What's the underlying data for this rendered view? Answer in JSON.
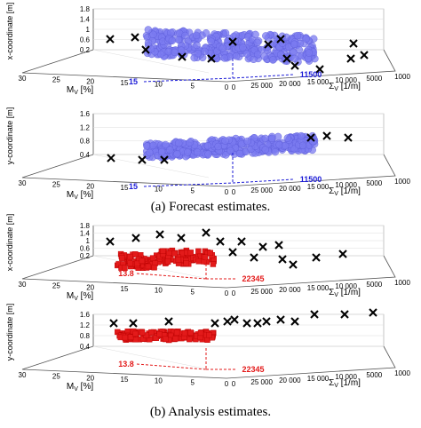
{
  "caption_a": "(a)  Forecast estimates.",
  "caption_b": "(b)  Analysis estimates.",
  "chart_data": [
    {
      "type": "scatter",
      "ylabel": "x-coordinate [m]",
      "xlabel_left": "M_V [%]",
      "xlabel_right": "Σ_V [1/m]",
      "z_ticks": [
        "0.2",
        "0.6",
        "1",
        "1.4",
        "1.8"
      ],
      "m_ticks": [
        "30",
        "25",
        "20",
        "15",
        "10",
        "5",
        "0"
      ],
      "s_ticks": [
        "0",
        "25 000",
        "20 000",
        "15 000",
        "10 000",
        "5000",
        "1000"
      ],
      "ensemble_color": "#7b7bf0",
      "estimate_label_m": "15",
      "estimate_label_s": "11500",
      "estimate_color": "#1a1ad6",
      "cross_label": "×"
    },
    {
      "type": "scatter",
      "ylabel": "y-coordinate [m]",
      "xlabel_left": "M_V [%]",
      "xlabel_right": "Σ_V [1/m]",
      "z_ticks": [
        "0.4",
        "0.8",
        "1.2",
        "1.6"
      ],
      "m_ticks": [
        "30",
        "25",
        "20",
        "15",
        "10",
        "5",
        "0"
      ],
      "s_ticks": [
        "0",
        "25 000",
        "20 000",
        "15 000",
        "10 000",
        "5000",
        "1000"
      ],
      "ensemble_color": "#7b7bf0",
      "estimate_label_m": "15",
      "estimate_label_s": "11500",
      "estimate_color": "#1a1ad6"
    },
    {
      "type": "scatter",
      "ylabel": "x-coordinate [m]",
      "xlabel_left": "M_V [%]",
      "xlabel_right": "Σ_V [1/m]",
      "z_ticks": [
        "0.2",
        "0.6",
        "1",
        "1.4",
        "1.8"
      ],
      "m_ticks": [
        "30",
        "25",
        "20",
        "15",
        "10",
        "5",
        "0"
      ],
      "s_ticks": [
        "0",
        "25 000",
        "20 000",
        "15 000",
        "10 000",
        "5000",
        "1000"
      ],
      "ensemble_color": "#e31a1a",
      "estimate_label_m": "13.8",
      "estimate_label_s": "22345",
      "estimate_color": "#e31a1a"
    },
    {
      "type": "scatter",
      "ylabel": "y-coordinate [m]",
      "xlabel_left": "M_V [%]",
      "xlabel_right": "Σ_V [1/m]",
      "z_ticks": [
        "0.4",
        "0.8",
        "1.2",
        "1.6"
      ],
      "m_ticks": [
        "30",
        "25",
        "20",
        "15",
        "10",
        "5",
        "0"
      ],
      "s_ticks": [
        "0",
        "25 000",
        "20 000",
        "15 000",
        "10 000",
        "5000",
        "1000"
      ],
      "ensemble_color": "#e31a1a",
      "estimate_label_m": "13.8",
      "estimate_label_s": "22345",
      "estimate_color": "#e31a1a"
    }
  ]
}
